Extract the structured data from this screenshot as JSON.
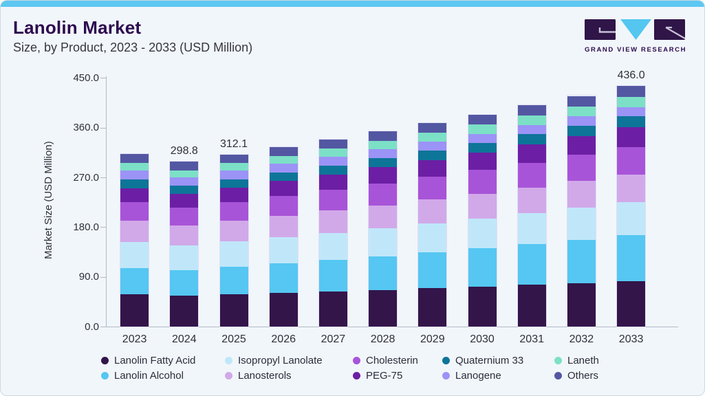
{
  "header": {
    "title": "Lanolin Market",
    "subtitle": "Size, by Product, 2023 - 2033 (USD Million)",
    "logo_text": "GRAND VIEW RESEARCH"
  },
  "chart_data": {
    "type": "bar",
    "stacked": true,
    "title": "Lanolin Market",
    "subtitle": "Size, by Product, 2023 - 2033 (USD Million)",
    "ylabel": "Market Size (USD Million)",
    "xlabel": "",
    "ylim": [
      0,
      450
    ],
    "yticks": [
      "0.0",
      "90.0",
      "180.0",
      "270.0",
      "360.0",
      "450.0"
    ],
    "grid": false,
    "legend_position": "bottom",
    "categories": [
      "2023",
      "2024",
      "2025",
      "2026",
      "2027",
      "2028",
      "2029",
      "2030",
      "2031",
      "2032",
      "2033"
    ],
    "series": [
      {
        "name": "Lanolin Fatty Acid",
        "color": "#33154a",
        "values": [
          59.7,
          56.9,
          59.4,
          61.9,
          64.5,
          67.2,
          70.0,
          72.9,
          76.0,
          79.2,
          82.4
        ]
      },
      {
        "name": "Lanolin Alcohol",
        "color": "#55c7f2",
        "values": [
          46.9,
          46.0,
          49.4,
          52.9,
          56.5,
          60.5,
          64.6,
          69.0,
          73.7,
          78.6,
          83.7
        ]
      },
      {
        "name": "Isopropyl Lanolate",
        "color": "#c0e7f9",
        "values": [
          46.9,
          44.4,
          45.9,
          47.5,
          49.1,
          50.7,
          52.5,
          54.2,
          56.0,
          57.9,
          59.8
        ]
      },
      {
        "name": "Lanosterols",
        "color": "#d1a9e9",
        "values": [
          38.2,
          36.2,
          37.6,
          39.0,
          40.4,
          41.9,
          43.5,
          45.0,
          46.7,
          48.4,
          50.2
        ]
      },
      {
        "name": "Cholesterin",
        "color": "#a854d8",
        "values": [
          34.1,
          32.6,
          34.2,
          35.8,
          37.5,
          39.3,
          41.1,
          43.0,
          45.0,
          47.1,
          49.4
        ]
      },
      {
        "name": "PEG-75",
        "color": "#6c1fa4",
        "values": [
          25.6,
          24.5,
          25.6,
          26.8,
          27.9,
          29.2,
          30.5,
          31.8,
          33.2,
          34.7,
          36.2
        ]
      },
      {
        "name": "Quaternium 33",
        "color": "#0d7598",
        "values": [
          15.6,
          14.7,
          15.2,
          15.7,
          16.1,
          16.6,
          17.1,
          17.6,
          18.1,
          18.7,
          19.4
        ]
      },
      {
        "name": "Lanogene",
        "color": "#9b93f6",
        "values": [
          16.3,
          15.1,
          15.3,
          15.5,
          15.7,
          15.9,
          16.1,
          16.2,
          16.4,
          16.5,
          16.5
        ]
      },
      {
        "name": "Laneth",
        "color": "#7ce0c6",
        "values": [
          13.8,
          13.1,
          13.7,
          14.2,
          14.8,
          15.4,
          16.0,
          16.7,
          17.3,
          18.0,
          18.6
        ]
      },
      {
        "name": "Others",
        "color": "#5357a2",
        "values": [
          16.3,
          15.3,
          15.8,
          16.2,
          16.7,
          17.2,
          17.6,
          18.1,
          18.6,
          19.1,
          19.8
        ]
      }
    ],
    "totals": [
      313.4,
      298.8,
      312.1,
      325.5,
      339.2,
      353.9,
      369.0,
      384.5,
      401.0,
      418.2,
      436.0
    ],
    "value_labels": [
      "",
      "298.8",
      "312.1",
      "",
      "",
      "",
      "",
      "",
      "",
      "",
      "436.0"
    ]
  },
  "legend": {
    "order": [
      "Lanolin Fatty Acid",
      "Isopropyl Lanolate",
      "Cholesterin",
      "Quaternium 33",
      "Laneth",
      "Lanolin Alcohol",
      "Lanosterols",
      "PEG-75",
      "Lanogene",
      "Others"
    ]
  },
  "colors": {
    "accent_top_strip": "#5ec8f2",
    "card_background": "#f1f6fa",
    "card_border": "#ccd9e4",
    "title_text": "#2d0a4e",
    "body_text": "#2f2f3c",
    "axis_line": "#b3b9c6",
    "logo_purple": "#2f1548",
    "logo_triangle": "#54c6f0"
  }
}
